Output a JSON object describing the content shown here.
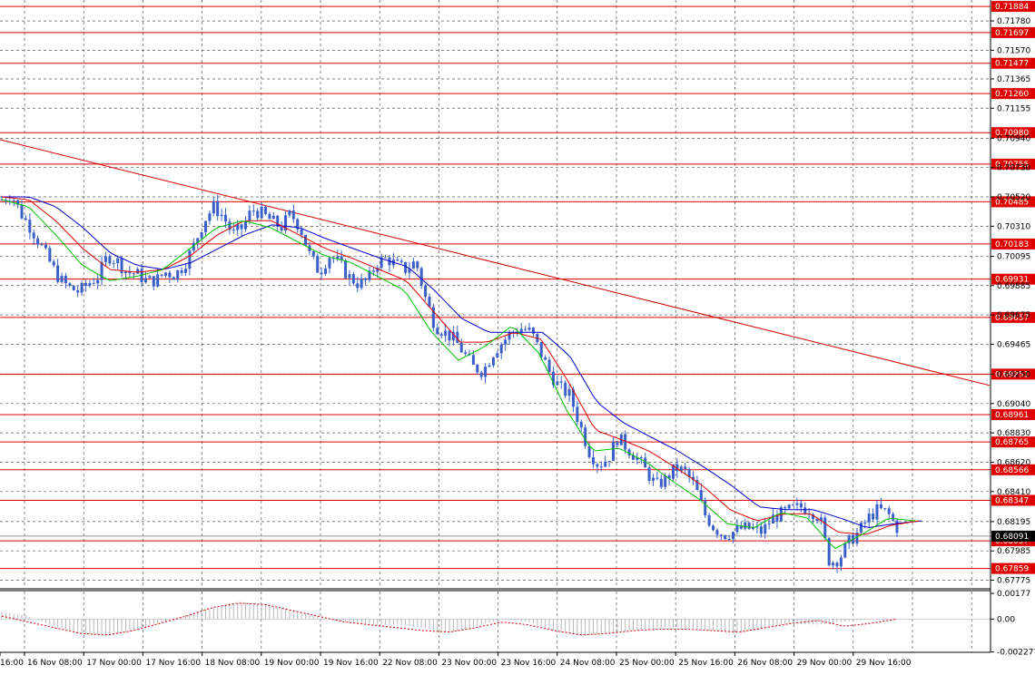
{
  "colors": {
    "background": "#ffffff",
    "grid": "#555555",
    "level_line": "#e00000",
    "level_tag": "#e00000",
    "trendline": "#d40000",
    "candle": "#3a5fc8",
    "ma_fast": "#00c000",
    "ma_mid": "#e00000",
    "ma_slow": "#0000d0",
    "osc_bar": "#b8b8b8",
    "osc_signal": "#d00000",
    "current_price": "#000000"
  },
  "chart_data": [
    {
      "type": "candlestick",
      "title": "",
      "xlabel": "",
      "ylabel": "",
      "ylim": [
        0.6772,
        0.7193
      ],
      "grid": true,
      "price_ticks": [
        "0.71780",
        "0.71570",
        "0.71365",
        "0.71155",
        "0.70940",
        "0.70730",
        "0.70520",
        "0.70310",
        "0.70095",
        "0.69885",
        "0.69675",
        "0.69465",
        "0.69250",
        "0.69040",
        "0.68830",
        "0.68620",
        "0.68410",
        "0.68195",
        "0.67985",
        "0.67775"
      ],
      "time_labels": [
        "16:00",
        "16 Nov 08:00",
        "17 Nov 00:00",
        "17 Nov 16:00",
        "18 Nov 08:00",
        "19 Nov 00:00",
        "19 Nov 16:00",
        "22 Nov 08:00",
        "23 Nov 00:00",
        "23 Nov 16:00",
        "24 Nov 08:00",
        "25 Nov 00:00",
        "25 Nov 16:00",
        "26 Nov 08:00",
        "29 Nov 00:00",
        "29 Nov 16:00"
      ],
      "levels": [
        "0.71884",
        "0.71697",
        "0.71477",
        "0.71260",
        "0.70980",
        "0.70755",
        "0.70485",
        "0.70183",
        "0.69931",
        "0.69657",
        "0.69251",
        "0.68961",
        "0.68765",
        "0.68566",
        "0.68347",
        "0.68057",
        "0.67859"
      ],
      "current_price": "0.68091",
      "trendline": {
        "from": 0.7093,
        "to": 0.6917
      },
      "price_anchors": [
        0.705,
        0.7054,
        0.704,
        0.703,
        0.7018,
        0.7005,
        0.6993,
        0.6987,
        0.6984,
        0.699,
        0.6995,
        0.701,
        0.7006,
        0.6998,
        0.6997,
        0.6992,
        0.6992,
        0.6998,
        0.6996,
        0.7004,
        0.7018,
        0.7035,
        0.7045,
        0.7038,
        0.7025,
        0.703,
        0.7043,
        0.704,
        0.7035,
        0.703,
        0.704,
        0.703,
        0.701,
        0.6998,
        0.701,
        0.7005,
        0.6995,
        0.699,
        0.6992,
        0.7005,
        0.7008,
        0.7003,
        0.7,
        0.7006,
        0.698,
        0.696,
        0.6955,
        0.695,
        0.694,
        0.693,
        0.6927,
        0.694,
        0.6948,
        0.6955,
        0.6958,
        0.6955,
        0.694,
        0.6925,
        0.6915,
        0.691,
        0.689,
        0.687,
        0.686,
        0.6865,
        0.688,
        0.6872,
        0.6865,
        0.6855,
        0.6845,
        0.685,
        0.6858,
        0.6855,
        0.6845,
        0.6825,
        0.6815,
        0.681,
        0.6812,
        0.6815,
        0.6814,
        0.6812,
        0.6822,
        0.6825,
        0.6828,
        0.683,
        0.6828,
        0.6822,
        0.679,
        0.6793,
        0.6805,
        0.6812,
        0.6822,
        0.6828,
        0.6826,
        0.6815
      ],
      "ma_fast_anchors": [
        0.705,
        0.7045,
        0.7025,
        0.7003,
        0.6992,
        0.6995,
        0.7,
        0.7015,
        0.703,
        0.7035,
        0.703,
        0.702,
        0.701,
        0.7005,
        0.6995,
        0.6985,
        0.6955,
        0.6935,
        0.6945,
        0.696,
        0.694,
        0.69,
        0.687,
        0.6872,
        0.6862,
        0.6848,
        0.6835,
        0.6818,
        0.6815,
        0.6826,
        0.6822,
        0.68,
        0.681,
        0.6822,
        0.682
      ],
      "ma_mid_anchors": [
        0.7052,
        0.705,
        0.7035,
        0.7015,
        0.7,
        0.6998,
        0.7,
        0.701,
        0.7025,
        0.7035,
        0.7035,
        0.7025,
        0.7015,
        0.7008,
        0.7,
        0.6992,
        0.697,
        0.6948,
        0.6948,
        0.6955,
        0.695,
        0.692,
        0.6885,
        0.6878,
        0.687,
        0.6858,
        0.6845,
        0.6828,
        0.682,
        0.6825,
        0.6825,
        0.6812,
        0.681,
        0.6817,
        0.682
      ],
      "ma_slow_anchors": [
        0.7052,
        0.7052,
        0.7045,
        0.703,
        0.7012,
        0.7003,
        0.7,
        0.7005,
        0.7015,
        0.7025,
        0.7032,
        0.703,
        0.7022,
        0.7015,
        0.7008,
        0.7002,
        0.6985,
        0.6965,
        0.6955,
        0.6955,
        0.6955,
        0.6938,
        0.6905,
        0.689,
        0.688,
        0.687,
        0.6858,
        0.6845,
        0.683,
        0.6828,
        0.6828,
        0.6822,
        0.6815,
        0.6818,
        0.682
      ]
    },
    {
      "type": "oscillator",
      "title": "",
      "ylim": [
        -0.0023,
        0.0019
      ],
      "ticks": [
        "0.00177",
        "0.00",
        "-0.002277"
      ],
      "bar_anchors": [
        0.0005,
        0.0002,
        -0.0005,
        -0.001,
        -0.0012,
        -0.0008,
        -0.0003,
        0.0003,
        0.0008,
        0.0012,
        0.001,
        0.0006,
        0.0002,
        -0.0002,
        -0.0004,
        -0.0004,
        -0.0006,
        -0.001,
        -0.0005,
        0.0,
        -0.0002,
        -0.0008,
        -0.0012,
        -0.001,
        -0.0008,
        -0.0006,
        -0.0006,
        -0.0008,
        -0.001,
        -0.0006,
        -0.0003,
        -0.0004,
        -0.0002,
        0.0,
        0.0
      ],
      "signal_anchors": [
        0.0002,
        -0.0002,
        -0.0006,
        -0.001,
        -0.0011,
        -0.0008,
        -0.0003,
        0.0002,
        0.0008,
        0.0011,
        0.001,
        0.0006,
        0.0002,
        -0.0002,
        -0.0004,
        -0.0006,
        -0.0008,
        -0.0009,
        -0.0006,
        -0.0002,
        -0.0004,
        -0.0008,
        -0.0011,
        -0.001,
        -0.0008,
        -0.0007,
        -0.0007,
        -0.0008,
        -0.0009,
        -0.0006,
        -0.0003,
        -0.0001,
        -0.0005,
        -0.0003,
        0.0
      ]
    }
  ]
}
